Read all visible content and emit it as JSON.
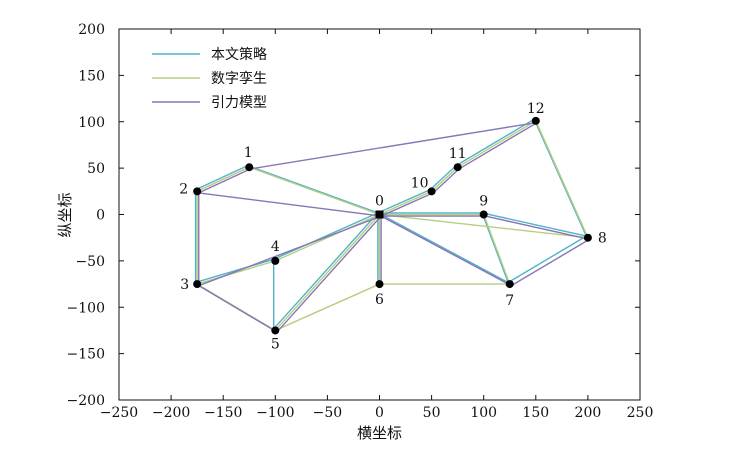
{
  "chart_data": {
    "type": "line",
    "title": "",
    "xlabel": "横坐标",
    "ylabel": "纵坐标",
    "xlim": [
      -250,
      250
    ],
    "ylim": [
      -200,
      200
    ],
    "x_ticks": [
      -250,
      -200,
      -150,
      -100,
      -50,
      0,
      50,
      100,
      150,
      200,
      250
    ],
    "y_ticks": [
      -200,
      -150,
      -100,
      -50,
      0,
      50,
      100,
      150,
      200
    ],
    "x_tick_labels": [
      "−250",
      "−200",
      "−150",
      "−100",
      "−50",
      "0",
      "50",
      "100",
      "150",
      "200",
      "250"
    ],
    "y_tick_labels": [
      "−200",
      "−150",
      "−100",
      "−50",
      "0",
      "50",
      "100",
      "150",
      "200"
    ],
    "grid": false,
    "legend_position": "top-left",
    "nodes": [
      {
        "id": "0",
        "x": 0,
        "y": 0
      },
      {
        "id": "1",
        "x": -125,
        "y": 51
      },
      {
        "id": "2",
        "x": -175,
        "y": 25
      },
      {
        "id": "3",
        "x": -175,
        "y": -75
      },
      {
        "id": "4",
        "x": -100,
        "y": -50
      },
      {
        "id": "5",
        "x": -100,
        "y": -125
      },
      {
        "id": "6",
        "x": 0,
        "y": -75
      },
      {
        "id": "7",
        "x": 125,
        "y": -75
      },
      {
        "id": "8",
        "x": 200,
        "y": -25
      },
      {
        "id": "9",
        "x": 100,
        "y": 0
      },
      {
        "id": "10",
        "x": 50,
        "y": 25
      },
      {
        "id": "11",
        "x": 75,
        "y": 51
      },
      {
        "id": "12",
        "x": 150,
        "y": 101
      }
    ],
    "series": [
      {
        "name": "本文策略",
        "color": "#4fb3c8",
        "edges": [
          [
            "0",
            "1"
          ],
          [
            "1",
            "2"
          ],
          [
            "2",
            "3"
          ],
          [
            "3",
            "4"
          ],
          [
            "4",
            "5"
          ],
          [
            "4",
            "0"
          ],
          [
            "5",
            "0"
          ],
          [
            "0",
            "6"
          ],
          [
            "0",
            "10"
          ],
          [
            "10",
            "11"
          ],
          [
            "11",
            "12"
          ],
          [
            "12",
            "8"
          ],
          [
            "8",
            "9"
          ],
          [
            "9",
            "0"
          ],
          [
            "9",
            "7"
          ],
          [
            "7",
            "0"
          ],
          [
            "7",
            "8"
          ]
        ]
      },
      {
        "name": "数字孪生",
        "color": "#b5cf7f",
        "edges": [
          [
            "0",
            "1"
          ],
          [
            "1",
            "2"
          ],
          [
            "2",
            "3"
          ],
          [
            "3",
            "4"
          ],
          [
            "4",
            "0"
          ],
          [
            "3",
            "5"
          ],
          [
            "5",
            "0"
          ],
          [
            "5",
            "6"
          ],
          [
            "6",
            "7"
          ],
          [
            "7",
            "9"
          ],
          [
            "9",
            "0"
          ],
          [
            "0",
            "10"
          ],
          [
            "10",
            "11"
          ],
          [
            "11",
            "12"
          ],
          [
            "12",
            "8"
          ],
          [
            "0",
            "8"
          ],
          [
            "0",
            "6"
          ]
        ]
      },
      {
        "name": "引力模型",
        "color": "#8a74b8",
        "edges": [
          [
            "1",
            "12"
          ],
          [
            "1",
            "2"
          ],
          [
            "2",
            "0"
          ],
          [
            "2",
            "3"
          ],
          [
            "3",
            "5"
          ],
          [
            "3",
            "0"
          ],
          [
            "5",
            "0"
          ],
          [
            "0",
            "6"
          ],
          [
            "0",
            "10"
          ],
          [
            "10",
            "11"
          ],
          [
            "11",
            "12"
          ],
          [
            "0",
            "9"
          ],
          [
            "9",
            "8"
          ],
          [
            "0",
            "7"
          ],
          [
            "7",
            "8"
          ]
        ]
      }
    ]
  }
}
